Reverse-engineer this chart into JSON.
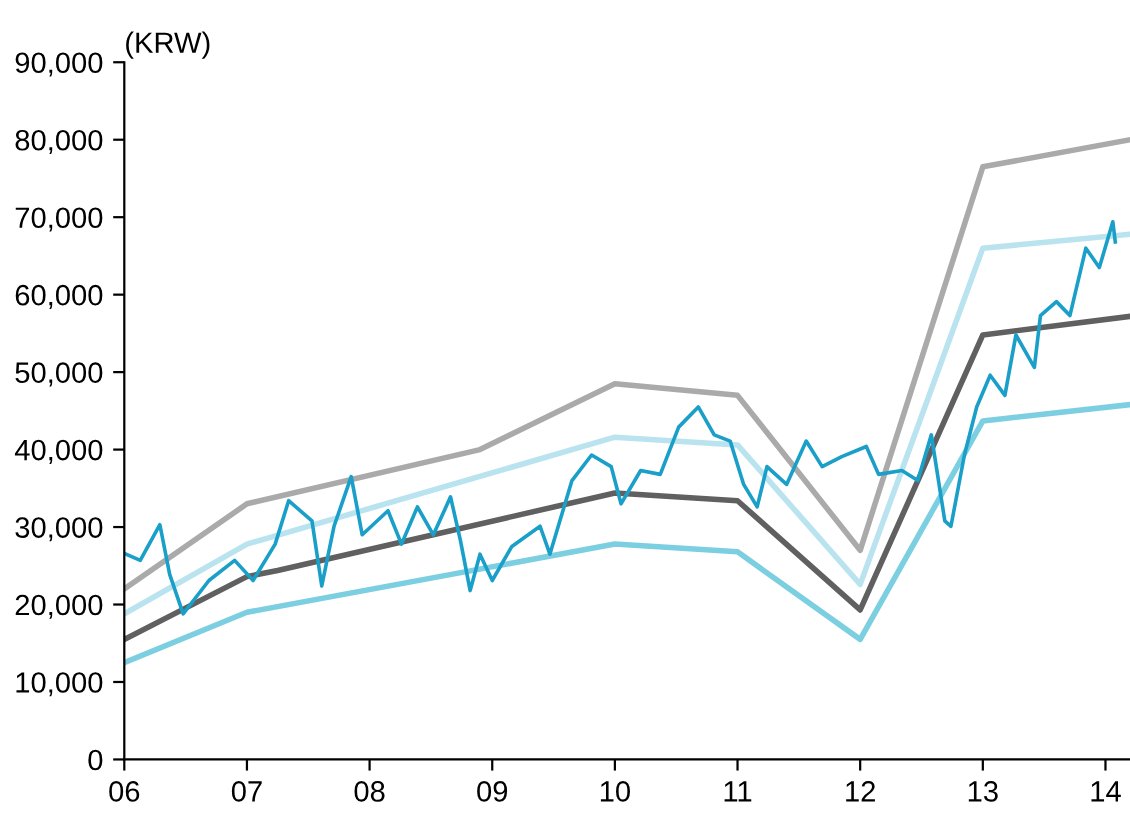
{
  "chart_data": {
    "type": "line",
    "ylabel": "(KRW)",
    "xlim": [
      2006,
      2014.2
    ],
    "ylim": [
      0,
      90000
    ],
    "xticks": [
      {
        "value": 2006,
        "label": "06"
      },
      {
        "value": 2007,
        "label": "07"
      },
      {
        "value": 2008,
        "label": "08"
      },
      {
        "value": 2009,
        "label": "09"
      },
      {
        "value": 2010,
        "label": "10"
      },
      {
        "value": 2011,
        "label": "11"
      },
      {
        "value": 2012,
        "label": "12"
      },
      {
        "value": 2013,
        "label": "13"
      },
      {
        "value": 2014,
        "label": "14"
      }
    ],
    "yticks": [
      {
        "value": 0,
        "label": "0"
      },
      {
        "value": 10000,
        "label": "10,000"
      },
      {
        "value": 20000,
        "label": "20,000"
      },
      {
        "value": 30000,
        "label": "30,000"
      },
      {
        "value": 40000,
        "label": "40,000"
      },
      {
        "value": 50000,
        "label": "50,000"
      },
      {
        "value": 60000,
        "label": "60,000"
      },
      {
        "value": 70000,
        "label": "70,000"
      },
      {
        "value": 80000,
        "label": "80,000"
      },
      {
        "value": 90000,
        "label": "90,000"
      }
    ],
    "grid": false,
    "legend": false,
    "marker": "none",
    "line_style": "solid",
    "series": [
      {
        "color": "#aaaaaa",
        "x": [
          2006,
          2007,
          2008.9,
          2010,
          2011,
          2012,
          2013,
          2014.2
        ],
        "values": [
          22000,
          33000,
          40000,
          48500,
          47000,
          27000,
          76500,
          80000
        ]
      },
      {
        "color": "#b9e3ef",
        "x": [
          2006,
          2007,
          2010,
          2011,
          2012,
          2013,
          2014.2
        ],
        "values": [
          18800,
          27800,
          41600,
          40600,
          22600,
          66000,
          67800
        ]
      },
      {
        "color": "#606060",
        "x": [
          2006,
          2007,
          2007.25,
          2010,
          2011,
          2012,
          2013,
          2014.2
        ],
        "values": [
          15500,
          23600,
          24400,
          34400,
          33400,
          19300,
          54800,
          57200
        ]
      },
      {
        "color": "#7ccfe0",
        "x": [
          2006,
          2007,
          2010,
          2011,
          2012,
          2013,
          2014.2
        ],
        "values": [
          12500,
          19000,
          27800,
          26800,
          15500,
          43700,
          45800
        ]
      },
      {
        "color": "#1a9fc9",
        "x": [
          2006.0,
          2006.13,
          2006.29,
          2006.37,
          2006.48,
          2006.69,
          2006.9,
          2007.05,
          2007.23,
          2007.34,
          2007.53,
          2007.61,
          2007.71,
          2007.85,
          2007.94,
          2008.15,
          2008.26,
          2008.39,
          2008.52,
          2008.66,
          2008.74,
          2008.82,
          2008.9,
          2009.0,
          2009.16,
          2009.39,
          2009.47,
          2009.65,
          2009.81,
          2009.97,
          2010.05,
          2010.21,
          2010.37,
          2010.52,
          2010.68,
          2010.81,
          2010.94,
          2011.05,
          2011.16,
          2011.24,
          2011.4,
          2011.56,
          2011.69,
          2011.85,
          2012.05,
          2012.15,
          2012.34,
          2012.47,
          2012.58,
          2012.69,
          2012.74,
          2012.85,
          2012.95,
          2013.06,
          2013.18,
          2013.27,
          2013.42,
          2013.47,
          2013.6,
          2013.71,
          2013.84,
          2013.95,
          2014.06,
          2014.08
        ],
        "values": [
          26600,
          25700,
          30300,
          23900,
          18800,
          23100,
          25700,
          23100,
          27800,
          33400,
          30800,
          22400,
          30100,
          36500,
          29000,
          32100,
          27800,
          32600,
          29000,
          33900,
          28300,
          21800,
          26500,
          23100,
          27500,
          30100,
          26500,
          36000,
          39300,
          37800,
          33000,
          37300,
          36800,
          42900,
          45500,
          41900,
          41100,
          35500,
          32600,
          37800,
          35500,
          41100,
          37800,
          39100,
          40400,
          36800,
          37300,
          36000,
          41900,
          30800,
          30100,
          39300,
          45500,
          49600,
          47000,
          54800,
          50600,
          57300,
          59100,
          57300,
          66000,
          63500,
          69400,
          66800
        ]
      }
    ]
  }
}
